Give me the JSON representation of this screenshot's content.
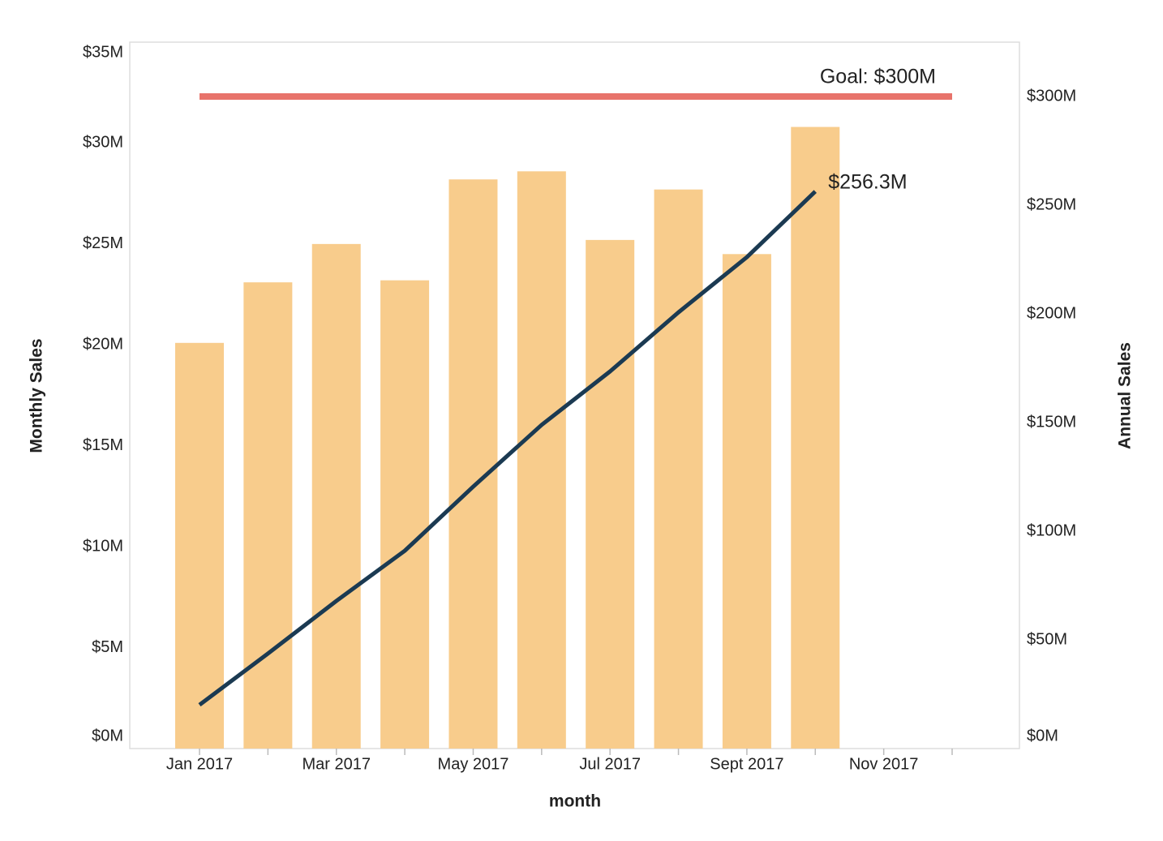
{
  "chart_data": {
    "type": "bar",
    "x_label": "month",
    "y_label": "Monthly Sales",
    "y2_label": "Annual Sales",
    "categories": [
      "Jan 2017",
      null,
      "Mar 2017",
      null,
      "May 2017",
      null,
      "Jul 2017",
      null,
      "Sept 2017",
      null,
      "Nov 2017",
      null
    ],
    "series": [
      {
        "type": "bar",
        "color": "#f8cc8c",
        "values": [
          20.1,
          23.1,
          25.0,
          23.2,
          28.2,
          28.6,
          25.2,
          27.7,
          24.5,
          30.8,
          null,
          null
        ]
      },
      {
        "type": "line",
        "axis": "y2",
        "color": "#1b3a52",
        "values": [
          20.1,
          43.7,
          67.9,
          91.0,
          120.5,
          148.9,
          173.5,
          200.7,
          226.1,
          256.3,
          null,
          null
        ],
        "value_labels": [
          null,
          null,
          null,
          null,
          null,
          null,
          null,
          null,
          null,
          "$256.3M",
          null,
          null
        ]
      }
    ],
    "goal": {
      "value": 300,
      "label": "Goal: $300M",
      "color": "#e8736b"
    },
    "ylim": [
      0,
      35
    ],
    "yticks": [
      {
        "value": 0,
        "label": "$0M"
      },
      {
        "value": 5,
        "label": "$5M"
      },
      {
        "value": 10,
        "label": "$10M"
      },
      {
        "value": 15,
        "label": "$15M"
      },
      {
        "value": 20,
        "label": "$20M"
      },
      {
        "value": 25,
        "label": "$25M"
      },
      {
        "value": 30,
        "label": "$30M"
      },
      {
        "value": 35,
        "label": "$35M"
      }
    ],
    "y2lim": [
      0,
      325
    ],
    "y2ticks": [
      {
        "value": 0,
        "label": "$0M"
      },
      {
        "value": 50,
        "label": "$50M"
      },
      {
        "value": 100,
        "label": "$100M"
      },
      {
        "value": 150,
        "label": "$150M"
      },
      {
        "value": 200,
        "label": "$200M"
      },
      {
        "value": 250,
        "label": "$250M"
      },
      {
        "value": 300,
        "label": "$300M"
      }
    ],
    "grid": false
  }
}
